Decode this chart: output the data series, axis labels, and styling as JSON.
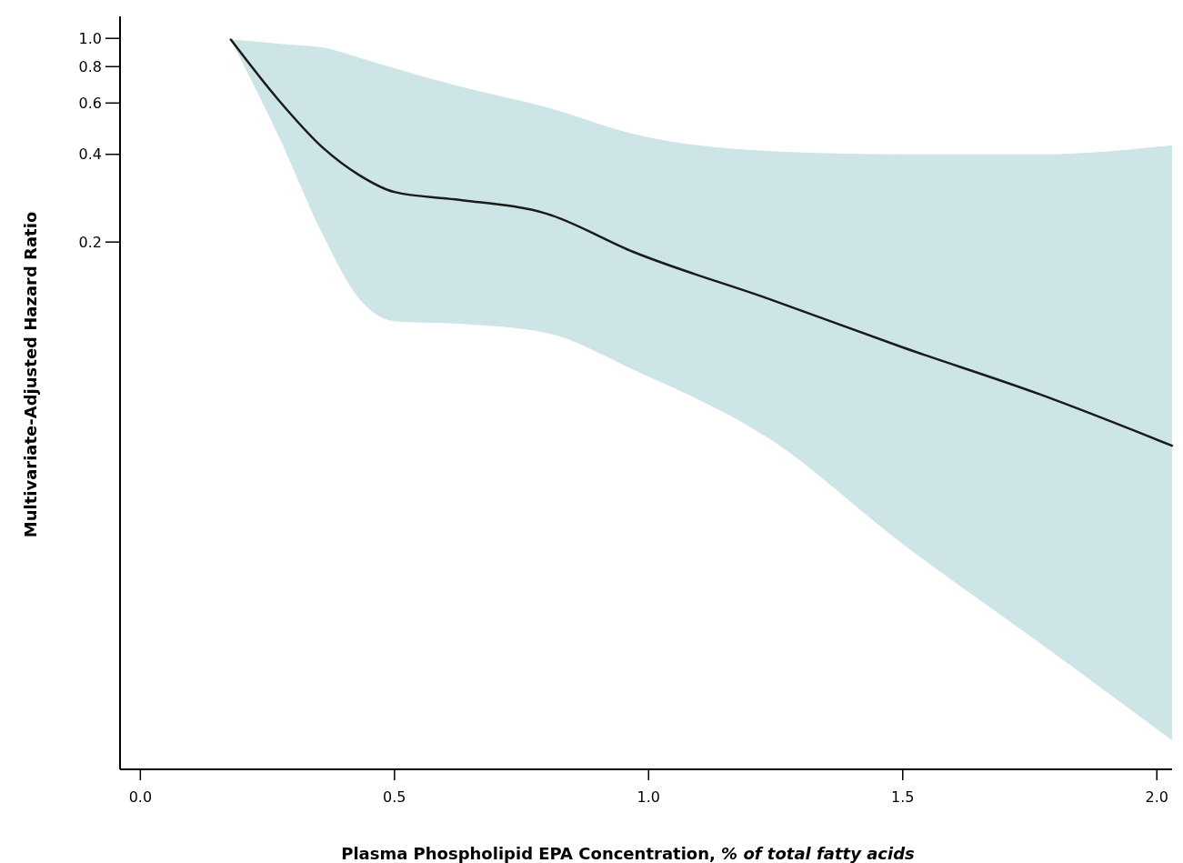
{
  "chart_data": {
    "type": "line",
    "xlabel": "Plasma Phospholipid EPA Concentration, % of total fatty acids",
    "ylabel": "Multivariate-Adjusted Hazard Ratio",
    "log": "y",
    "grid": false,
    "marker": "none",
    "line_style": "solid",
    "xlim": [
      -0.04,
      2.03
    ],
    "xticks": [
      {
        "value": 0,
        "label": "0.0"
      },
      0.5,
      {
        "value": 1,
        "label": "1.0"
      },
      1.5,
      {
        "value": 2,
        "label": "2.0"
      }
    ],
    "ylim": [
      0.0031,
      1.19
    ],
    "yticks": [
      0.2,
      0.4,
      0.6,
      0.8,
      {
        "value": 1,
        "label": "1.0"
      }
    ],
    "x": [
      0.178,
      0.27,
      0.36,
      0.43,
      0.5,
      0.62,
      0.8,
      0.97,
      1.24,
      1.5,
      1.77,
      2.03
    ],
    "series": [
      {
        "color": "#1a1a1a",
        "values": [
          0.99,
          0.62,
          0.42,
          0.34,
          0.297,
          0.28,
          0.25,
          0.185,
          0.127,
          0.087,
          0.06,
          0.04
        ],
        "lower": [
          0.99,
          0.47,
          0.21,
          0.128,
          0.107,
          0.105,
          0.0975,
          0.073,
          0.042,
          0.0184,
          0.0084,
          0.0039
        ],
        "upper": [
          0.99,
          0.96,
          0.93,
          0.86,
          0.79,
          0.69,
          0.58,
          0.47,
          0.41,
          0.4,
          0.4,
          0.43
        ]
      }
    ]
  }
}
